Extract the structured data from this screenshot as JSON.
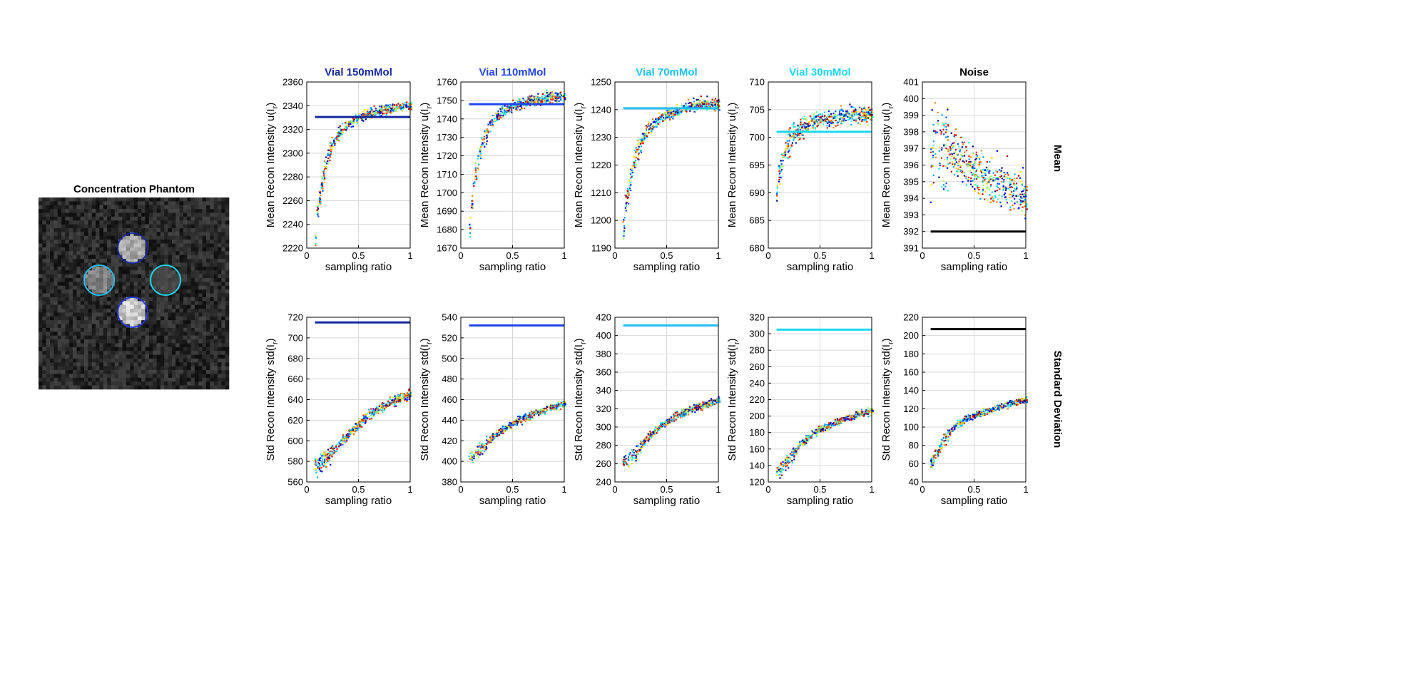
{
  "phantom": {
    "title": "Concentration Phantom",
    "vials": [
      {
        "name": "Vial 150mMol",
        "color": "#1428a0",
        "brightness": 0.7
      },
      {
        "name": "Vial 110mMol",
        "color": "#2238e0",
        "brightness": 0.85
      },
      {
        "name": "Vial 70mMol",
        "color": "#22c0f4",
        "brightness": 0.55
      },
      {
        "name": "Vial 30mMol",
        "color": "#1ad8f0",
        "brightness": 0.3
      }
    ]
  },
  "row_labels": [
    "Mean",
    "Standard Deviation"
  ],
  "chart_data": [
    {
      "type": "scatter",
      "title": "Vial 150mMol",
      "color": "#1428a0",
      "row": 0,
      "xlabel": "sampling ratio",
      "ylabel": "Mean Recon Intensity u(I",
      "ylabel_sub": "r",
      "ylabel_end": ")",
      "xlim": [
        0,
        1
      ],
      "ylim": [
        2220,
        2360
      ],
      "yticks": [
        2220,
        2240,
        2260,
        2280,
        2300,
        2320,
        2340,
        2360
      ],
      "xticks": [
        0,
        0.5,
        1
      ],
      "reference": 2330.5,
      "trend_x": [
        0.08,
        0.1,
        0.15,
        0.2,
        0.3,
        0.4,
        0.5,
        0.6,
        0.7,
        0.8,
        0.9,
        1.0
      ],
      "trend_y": [
        2228,
        2250,
        2280,
        2298,
        2316,
        2325,
        2330,
        2333,
        2335,
        2337,
        2339,
        2340
      ],
      "spread": 3
    },
    {
      "type": "scatter",
      "title": "Vial 110mMol",
      "color": "#2244ee",
      "row": 0,
      "xlabel": "sampling ratio",
      "ylabel": "Mean Recon Intensity u(I",
      "ylabel_sub": "r",
      "ylabel_end": ")",
      "xlim": [
        0,
        1
      ],
      "ylim": [
        1670,
        1760
      ],
      "yticks": [
        1670,
        1680,
        1690,
        1700,
        1710,
        1720,
        1730,
        1740,
        1750,
        1760
      ],
      "xticks": [
        0,
        0.5,
        1
      ],
      "reference": 1748,
      "trend_x": [
        0.08,
        0.1,
        0.15,
        0.2,
        0.3,
        0.4,
        0.5,
        0.6,
        0.7,
        0.8,
        0.9,
        1.0
      ],
      "trend_y": [
        1682,
        1695,
        1715,
        1728,
        1739,
        1744,
        1747,
        1749,
        1750,
        1751,
        1752,
        1752
      ],
      "spread": 2
    },
    {
      "type": "scatter",
      "title": "Vial 70mMol",
      "color": "#22c0f4",
      "row": 0,
      "xlabel": "sampling ratio",
      "ylabel": "Mean Recon Intensity u(I",
      "ylabel_sub": "r",
      "ylabel_end": ")",
      "xlim": [
        0,
        1
      ],
      "ylim": [
        1190,
        1250
      ],
      "yticks": [
        1190,
        1200,
        1210,
        1220,
        1230,
        1240,
        1250
      ],
      "xticks": [
        0,
        0.5,
        1
      ],
      "reference": 1240.5,
      "trend_x": [
        0.08,
        0.1,
        0.15,
        0.2,
        0.3,
        0.4,
        0.5,
        0.6,
        0.7,
        0.8,
        0.9,
        1.0
      ],
      "trend_y": [
        1197,
        1206,
        1216,
        1224,
        1232,
        1236,
        1238,
        1240,
        1241,
        1242,
        1242,
        1242
      ],
      "spread": 1.5
    },
    {
      "type": "scatter",
      "title": "Vial 30mMol",
      "color": "#1ad8f0",
      "row": 0,
      "xlabel": "sampling ratio",
      "ylabel": "Mean Recon Intensity u(I",
      "ylabel_sub": "r",
      "ylabel_end": ")",
      "xlim": [
        0,
        1
      ],
      "ylim": [
        680,
        710
      ],
      "yticks": [
        680,
        685,
        690,
        695,
        700,
        705,
        710
      ],
      "xticks": [
        0,
        0.5,
        1
      ],
      "reference": 701,
      "trend_x": [
        0.08,
        0.1,
        0.15,
        0.2,
        0.3,
        0.4,
        0.5,
        0.6,
        0.7,
        0.8,
        0.9,
        1.0
      ],
      "trend_y": [
        691,
        693.5,
        697,
        699.5,
        701.5,
        702.5,
        703,
        703.5,
        703.8,
        704,
        704,
        704
      ],
      "spread": 1.1
    },
    {
      "type": "scatter",
      "title": "Noise",
      "color": "#000000",
      "row": 0,
      "xlabel": "sampling ratio",
      "ylabel": "Mean Recon Intensity u(I",
      "ylabel_sub": "r",
      "ylabel_end": ")",
      "xlim": [
        0,
        1
      ],
      "ylim": [
        391,
        401
      ],
      "yticks": [
        391,
        392,
        393,
        394,
        395,
        396,
        397,
        398,
        399,
        400,
        401
      ],
      "xticks": [
        0,
        0.5,
        1
      ],
      "reference": 392,
      "trend_x": [
        0.08,
        0.2,
        0.3,
        0.4,
        0.5,
        0.6,
        0.7,
        0.8,
        0.9,
        1.0
      ],
      "trend_y": [
        397,
        397,
        396.8,
        396.2,
        395.6,
        395.2,
        395,
        394.8,
        394.5,
        394
      ],
      "spread": 1.0
    },
    {
      "type": "scatter",
      "title": "",
      "color": "#1428a0",
      "row": 1,
      "xlabel": "sampling ratio",
      "ylabel": "Std Recon Intensity std(I",
      "ylabel_sub": "r",
      "ylabel_end": ")",
      "xlim": [
        0,
        1
      ],
      "ylim": [
        560,
        720
      ],
      "yticks": [
        560,
        580,
        600,
        620,
        640,
        660,
        680,
        700,
        720
      ],
      "xticks": [
        0,
        0.5,
        1
      ],
      "reference": 715,
      "trend_x": [
        0.08,
        0.2,
        0.3,
        0.4,
        0.5,
        0.6,
        0.7,
        0.8,
        0.9,
        1.0
      ],
      "trend_y": [
        575,
        585,
        595,
        607,
        617,
        625,
        632,
        637,
        641,
        645
      ],
      "spread": 3.5
    },
    {
      "type": "scatter",
      "title": "",
      "color": "#2244ee",
      "row": 1,
      "xlabel": "sampling ratio",
      "ylabel": "Std Recon Intensity std(I",
      "ylabel_sub": "r",
      "ylabel_end": ")",
      "xlim": [
        0,
        1
      ],
      "ylim": [
        380,
        540
      ],
      "yticks": [
        380,
        400,
        420,
        440,
        460,
        480,
        500,
        520,
        540
      ],
      "xticks": [
        0,
        0.5,
        1
      ],
      "reference": 532,
      "trend_x": [
        0.08,
        0.2,
        0.3,
        0.4,
        0.5,
        0.6,
        0.7,
        0.8,
        0.9,
        1.0
      ],
      "trend_y": [
        403,
        413,
        423,
        431,
        437,
        442,
        446,
        450,
        453,
        456
      ],
      "spread": 2.5
    },
    {
      "type": "scatter",
      "title": "",
      "color": "#22c0f4",
      "row": 1,
      "xlabel": "sampling ratio",
      "ylabel": "Std Recon Intensity std(I",
      "ylabel_sub": "r",
      "ylabel_end": ")",
      "xlim": [
        0,
        1
      ],
      "ylim": [
        240,
        420
      ],
      "yticks": [
        240,
        260,
        280,
        300,
        320,
        340,
        360,
        380,
        400,
        420
      ],
      "xticks": [
        0,
        0.5,
        1
      ],
      "reference": 411,
      "trend_x": [
        0.08,
        0.2,
        0.3,
        0.4,
        0.5,
        0.6,
        0.7,
        0.8,
        0.9,
        1.0
      ],
      "trend_y": [
        262,
        272,
        287,
        298,
        306,
        313,
        318,
        322,
        326,
        329
      ],
      "spread": 3
    },
    {
      "type": "scatter",
      "title": "",
      "color": "#1ad8f0",
      "row": 1,
      "xlabel": "sampling ratio",
      "ylabel": "Std Recon Intensity std(I",
      "ylabel_sub": "r",
      "ylabel_end": ")",
      "xlim": [
        0,
        1
      ],
      "ylim": [
        120,
        320
      ],
      "yticks": [
        120,
        140,
        160,
        180,
        200,
        220,
        240,
        260,
        280,
        300,
        320
      ],
      "xticks": [
        0,
        0.5,
        1
      ],
      "reference": 305,
      "trend_x": [
        0.08,
        0.2,
        0.3,
        0.4,
        0.5,
        0.6,
        0.7,
        0.8,
        0.9,
        1.0
      ],
      "trend_y": [
        130,
        148,
        164,
        176,
        184,
        190,
        195,
        199,
        203,
        206
      ],
      "spread": 3
    },
    {
      "type": "scatter",
      "title": "",
      "color": "#000000",
      "row": 1,
      "xlabel": "sampling ratio",
      "ylabel": "Std Recon Intensity std(I",
      "ylabel_sub": "r",
      "ylabel_end": ")",
      "xlim": [
        0,
        1
      ],
      "ylim": [
        40,
        220
      ],
      "yticks": [
        40,
        60,
        80,
        100,
        120,
        140,
        160,
        180,
        200,
        220
      ],
      "xticks": [
        0,
        0.5,
        1
      ],
      "reference": 207,
      "trend_x": [
        0.08,
        0.2,
        0.3,
        0.4,
        0.5,
        0.6,
        0.7,
        0.8,
        0.9,
        1.0
      ],
      "trend_y": [
        60,
        85,
        100,
        108,
        113,
        117,
        120,
        124,
        127,
        129
      ],
      "spread": 2.5
    }
  ]
}
